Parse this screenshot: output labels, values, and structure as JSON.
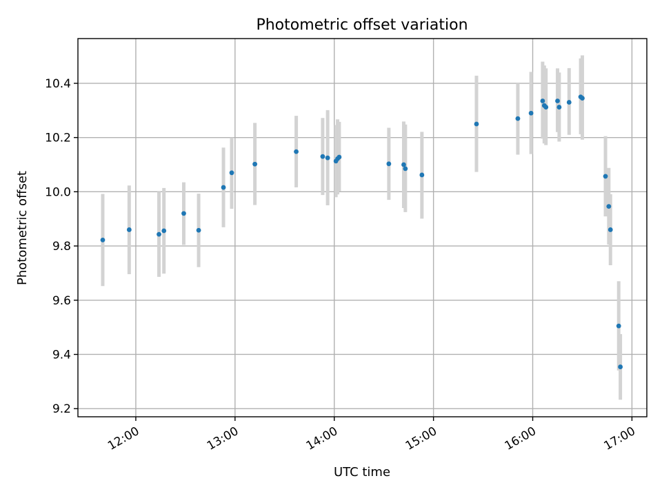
{
  "chart_data": {
    "type": "scatter",
    "title": "Photometric offset variation",
    "xlabel": "UTC time",
    "ylabel": "Photometric offset",
    "x_ticks": [
      "12:00",
      "13:00",
      "14:00",
      "15:00",
      "16:00",
      "17:00"
    ],
    "y_ticks": [
      "9.2",
      "9.4",
      "9.6",
      "9.8",
      "10.0",
      "10.2",
      "10.4"
    ],
    "xlim": [
      "11:25",
      "17:09"
    ],
    "ylim": [
      9.17,
      10.565
    ],
    "grid": true,
    "marker_color": "#1f77b4",
    "errorbar_color": "#d3d3d3",
    "points": [
      {
        "time": "11:40",
        "y": 9.822,
        "ylow": 9.652,
        "yhigh": 9.992
      },
      {
        "time": "11:56",
        "y": 9.86,
        "ylow": 9.696,
        "yhigh": 10.023
      },
      {
        "time": "12:14",
        "y": 9.843,
        "ylow": 9.686,
        "yhigh": 10.0
      },
      {
        "time": "12:17",
        "y": 9.856,
        "ylow": 9.698,
        "yhigh": 10.014
      },
      {
        "time": "12:29",
        "y": 9.92,
        "ylow": 9.804,
        "yhigh": 10.035
      },
      {
        "time": "12:38",
        "y": 9.858,
        "ylow": 9.722,
        "yhigh": 9.993
      },
      {
        "time": "12:53",
        "y": 10.016,
        "ylow": 9.869,
        "yhigh": 10.163
      },
      {
        "time": "12:58",
        "y": 10.07,
        "ylow": 9.937,
        "yhigh": 10.2
      },
      {
        "time": "13:12",
        "y": 10.102,
        "ylow": 9.951,
        "yhigh": 10.254
      },
      {
        "time": "13:37",
        "y": 10.148,
        "ylow": 10.016,
        "yhigh": 10.28
      },
      {
        "time": "13:53",
        "y": 10.13,
        "ylow": 9.988,
        "yhigh": 10.272
      },
      {
        "time": "13:56",
        "y": 10.125,
        "ylow": 9.95,
        "yhigh": 10.301
      },
      {
        "time": "14:01",
        "y": 10.113,
        "ylow": 9.98,
        "yhigh": 10.246
      },
      {
        "time": "14:02",
        "y": 10.122,
        "ylow": 9.99,
        "yhigh": 10.267
      },
      {
        "time": "14:03",
        "y": 10.128,
        "ylow": 10.002,
        "yhigh": 10.258
      },
      {
        "time": "14:33",
        "y": 10.103,
        "ylow": 9.97,
        "yhigh": 10.236
      },
      {
        "time": "14:42",
        "y": 10.1,
        "ylow": 9.94,
        "yhigh": 10.259
      },
      {
        "time": "14:43",
        "y": 10.085,
        "ylow": 9.925,
        "yhigh": 10.248
      },
      {
        "time": "14:53",
        "y": 10.062,
        "ylow": 9.901,
        "yhigh": 10.221
      },
      {
        "time": "15:26",
        "y": 10.25,
        "ylow": 10.073,
        "yhigh": 10.428
      },
      {
        "time": "15:51",
        "y": 10.27,
        "ylow": 10.137,
        "yhigh": 10.4
      },
      {
        "time": "15:59",
        "y": 10.29,
        "ylow": 10.139,
        "yhigh": 10.442
      },
      {
        "time": "16:06",
        "y": 10.335,
        "ylow": 10.196,
        "yhigh": 10.48
      },
      {
        "time": "16:07",
        "y": 10.318,
        "ylow": 10.178,
        "yhigh": 10.466
      },
      {
        "time": "16:08",
        "y": 10.312,
        "ylow": 10.172,
        "yhigh": 10.455
      },
      {
        "time": "16:15",
        "y": 10.335,
        "ylow": 10.22,
        "yhigh": 10.455
      },
      {
        "time": "16:16",
        "y": 10.312,
        "ylow": 10.185,
        "yhigh": 10.44
      },
      {
        "time": "16:22",
        "y": 10.33,
        "ylow": 10.21,
        "yhigh": 10.456
      },
      {
        "time": "16:29",
        "y": 10.35,
        "ylow": 10.212,
        "yhigh": 10.492
      },
      {
        "time": "16:30",
        "y": 10.345,
        "ylow": 10.192,
        "yhigh": 10.503
      },
      {
        "time": "16:44",
        "y": 10.057,
        "ylow": 9.909,
        "yhigh": 10.205
      },
      {
        "time": "16:46",
        "y": 9.946,
        "ylow": 9.805,
        "yhigh": 10.088
      },
      {
        "time": "16:47",
        "y": 9.86,
        "ylow": 9.729,
        "yhigh": 9.991
      },
      {
        "time": "16:52",
        "y": 9.505,
        "ylow": 9.341,
        "yhigh": 9.67
      },
      {
        "time": "16:53",
        "y": 9.354,
        "ylow": 9.233,
        "yhigh": 9.475
      }
    ]
  }
}
